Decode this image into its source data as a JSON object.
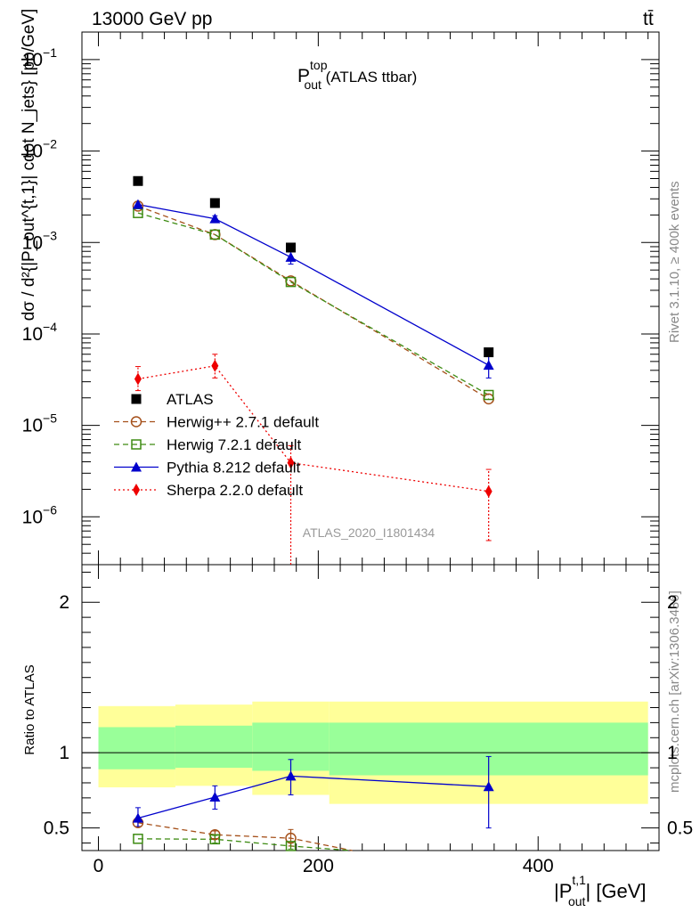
{
  "header": {
    "energy_label": "13000 GeV pp",
    "process_label": "tt̄"
  },
  "side_text": {
    "rivet": "Rivet 3.1.10, ≥ 400k events",
    "mcplots": "mcplots.cern.ch [arXiv:1306.3436]"
  },
  "chart_data": [
    {
      "type": "scatter",
      "panel": "main",
      "title": {
        "base": "P",
        "sup": "top",
        "sub": "out",
        "suffix": " (ATLAS ttbar)"
      },
      "watermark": "ATLAS_2020_I1801434",
      "ylabel": "dσ / d²{|P_out^{t,1}| cdot N_jets} [pb/GeV]",
      "yscale": "log",
      "ylim": [
        3e-07,
        0.2
      ],
      "xlim": [
        -15,
        510
      ],
      "ytick_labels": [
        {
          "base": "10",
          "exp": "−6",
          "value": 1e-06
        },
        {
          "base": "10",
          "exp": "−5",
          "value": 1e-05
        },
        {
          "base": "10",
          "exp": "−4",
          "value": 0.0001
        },
        {
          "base": "10",
          "exp": "−3",
          "value": 0.001
        },
        {
          "base": "10",
          "exp": "−2",
          "value": 0.01
        },
        {
          "base": "10",
          "exp": "−1",
          "value": 0.1
        }
      ],
      "x": [
        36,
        106,
        175,
        355
      ],
      "series": [
        {
          "name": "ATLAS",
          "color": "#000000",
          "marker": "square",
          "values": [
            0.0047,
            0.0027,
            0.00088,
            6.3e-05
          ],
          "line": "none"
        },
        {
          "name": "Herwig++ 2.7.1 default",
          "color": "#a5501a",
          "marker": "circle-open",
          "line": "dashed",
          "values": [
            0.0025,
            0.00122,
            0.00038,
            1.95e-05
          ]
        },
        {
          "name": "Herwig 7.2.1 default",
          "color": "#3d8b12",
          "marker": "square-open",
          "line": "dashed",
          "values": [
            0.0021,
            0.00122,
            0.00037,
            2.15e-05
          ]
        },
        {
          "name": "Pythia 8.212 default",
          "color": "#0000cc",
          "marker": "triangle",
          "line": "solid",
          "values": [
            0.0026,
            0.00182,
            0.00069,
            4.55e-05
          ],
          "err_lo": [
            0.0024,
            0.00167,
            0.00058,
            3.3e-05
          ],
          "err_hi": [
            0.0028,
            0.00196,
            0.00079,
            5.75e-05
          ]
        },
        {
          "name": "Sherpa 2.2.0 default",
          "color": "#ee0000",
          "marker": "diamond",
          "line": "dotted",
          "values": [
            3.22e-05,
            4.48e-05,
            3.9e-06,
            1.9e-06
          ],
          "err_lo": [
            2.4e-05,
            3.3e-05,
            1e-07,
            5.5e-07
          ],
          "err_hi": [
            4.4e-05,
            6e-05,
            6e-06,
            3.3e-06
          ]
        }
      ]
    },
    {
      "type": "scatter",
      "panel": "ratio",
      "ylabel": "Ratio to ATLAS",
      "xlabel": {
        "base": "|P",
        "sup": "t,1",
        "sub": "out",
        "suffix": "| [GeV]"
      },
      "ylim": [
        0.35,
        2.25
      ],
      "xlim": [
        -15,
        510
      ],
      "ytick_labels": [
        {
          "label": "0.5",
          "value": 0.5
        },
        {
          "label": "1",
          "value": 1
        },
        {
          "label": "2",
          "value": 2
        }
      ],
      "xtick_labels": [
        {
          "label": "0",
          "value": 0
        },
        {
          "label": "200",
          "value": 200
        },
        {
          "label": "400",
          "value": 400
        }
      ],
      "reference": 1.0,
      "uncertainty_bands": [
        {
          "x0": 0,
          "x1": 70,
          "inner": [
            0.89,
            1.17
          ],
          "outer": [
            0.77,
            1.31
          ]
        },
        {
          "x0": 70,
          "x1": 140,
          "inner": [
            0.9,
            1.18
          ],
          "outer": [
            0.78,
            1.32
          ]
        },
        {
          "x0": 140,
          "x1": 210,
          "inner": [
            0.88,
            1.2
          ],
          "outer": [
            0.72,
            1.34
          ]
        },
        {
          "x0": 210,
          "x1": 500,
          "inner": [
            0.85,
            1.2
          ],
          "outer": [
            0.66,
            1.34
          ]
        }
      ],
      "x": [
        36,
        106,
        175,
        355
      ],
      "series": [
        {
          "name": "Herwig++ 2.7.1 default",
          "color": "#a5501a",
          "marker": "circle-open",
          "line": "dashed",
          "x": [
            36,
            106,
            175,
            231
          ],
          "values": [
            0.535,
            0.455,
            0.432,
            0.35
          ],
          "err_lo": [
            0.51,
            0.43,
            0.38,
            null
          ],
          "err_hi": [
            0.56,
            0.48,
            0.49,
            null
          ]
        },
        {
          "name": "Herwig 7.2.1 default",
          "color": "#3d8b12",
          "marker": "square-open",
          "line": "dashed",
          "x": [
            36,
            106,
            175,
            230
          ],
          "values": [
            0.428,
            0.425,
            0.38,
            0.35
          ],
          "err_lo": [
            null,
            0.4,
            0.36,
            null
          ],
          "err_hi": [
            null,
            0.45,
            0.4,
            null
          ]
        },
        {
          "name": "Pythia 8.212 default",
          "color": "#0000cc",
          "marker": "triangle",
          "line": "solid",
          "x": [
            36,
            106,
            175,
            355
          ],
          "values": [
            0.565,
            0.705,
            0.845,
            0.775
          ],
          "err_lo": [
            0.51,
            0.625,
            0.72,
            0.5
          ],
          "err_hi": [
            0.635,
            0.78,
            0.955,
            0.975
          ]
        }
      ]
    }
  ]
}
